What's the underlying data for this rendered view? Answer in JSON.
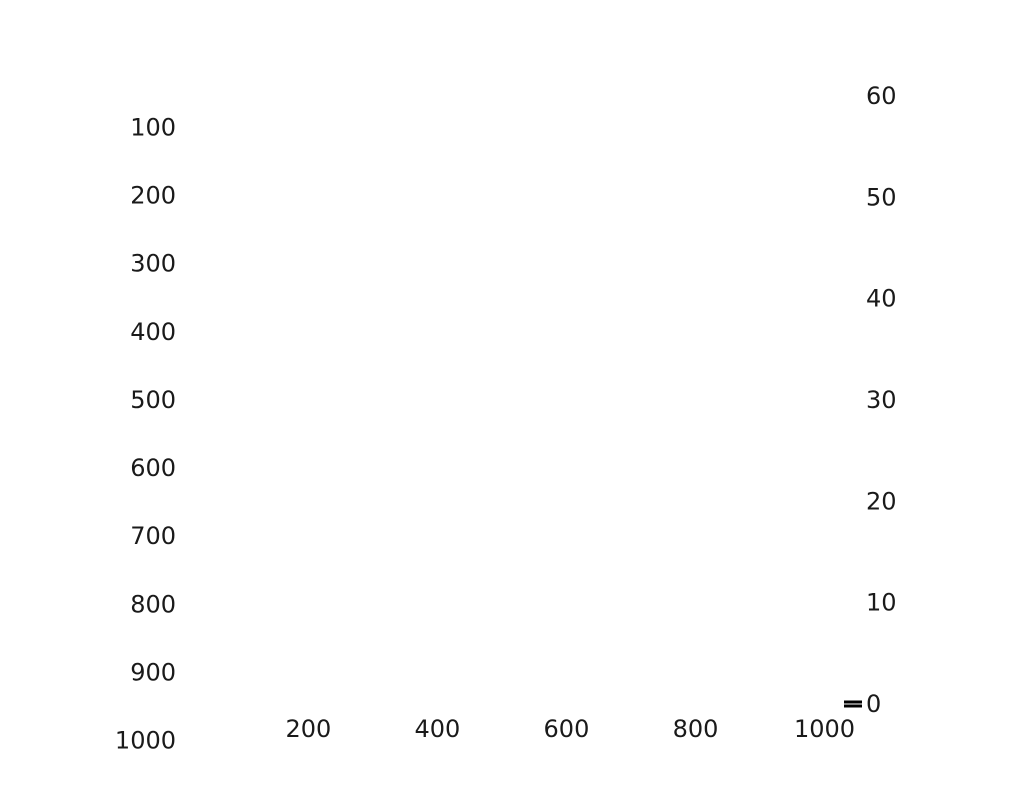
{
  "chart_data": {
    "type": "heatmap",
    "title": "",
    "xlabel": "",
    "ylabel": "",
    "x_ticks": [
      "200",
      "400",
      "600",
      "800",
      "1000"
    ],
    "y_ticks": [
      "100",
      "200",
      "300",
      "400",
      "500",
      "600",
      "700",
      "800",
      "900",
      "1000"
    ],
    "y_reversed": true,
    "xlim": [
      1,
      1024
    ],
    "ylim": [
      1,
      1024
    ],
    "colorbar": {
      "ticks": [
        "0",
        "10",
        "20",
        "30",
        "40",
        "50",
        "60"
      ],
      "range": [
        0,
        60
      ],
      "colormap": "white-to-black"
    },
    "grid": false,
    "image_appearance": "blank (all white)",
    "colors": {
      "text": "#1a1a1a",
      "background": "#ffffff",
      "mark": "#000000"
    }
  }
}
